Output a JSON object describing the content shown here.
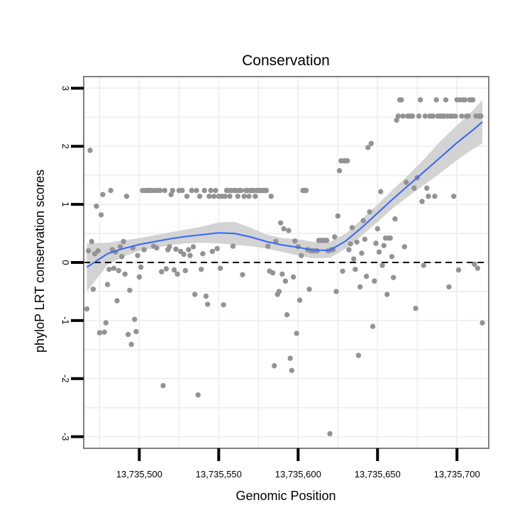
{
  "chart_data": {
    "type": "scatter",
    "title": "Conservation",
    "xlabel": "Genomic Position",
    "ylabel": "phyloP LRT conservation scores",
    "xlim": [
      13735465,
      13735720
    ],
    "ylim": [
      -3.2,
      3.2
    ],
    "x_ticks": [
      13735500,
      13735550,
      13735600,
      13735650,
      13735700
    ],
    "x_tick_labels": [
      "13,735,500",
      "13,735,550",
      "13,735,600",
      "13,735,650",
      "13,735,700"
    ],
    "y_ticks": [
      -3,
      -2,
      -1,
      0,
      1,
      2,
      3
    ],
    "y_tick_labels": [
      "-3",
      "-2",
      "-1",
      "0",
      "1",
      "2",
      "3"
    ],
    "reference_line_y": 0,
    "grid": true,
    "colors": {
      "points": "#939393",
      "smooth": "#3366ff",
      "band": "#d3d3d3",
      "reference": "#000000",
      "border": "#7f7f7f",
      "grid": "#f0f0f0"
    },
    "points": [
      [
        13735467,
        -0.8
      ],
      [
        13735468,
        0.2
      ],
      [
        13735469,
        1.93
      ],
      [
        13735470,
        0.36
      ],
      [
        13735471,
        -0.46
      ],
      [
        13735472,
        0.15
      ],
      [
        13735473,
        0.97
      ],
      [
        13735474,
        0.2
      ],
      [
        13735475,
        -1.21
      ],
      [
        13735476,
        0.82
      ],
      [
        13735477,
        1.17
      ],
      [
        13735478,
        -1.2
      ],
      [
        13735479,
        -1.04
      ],
      [
        13735480,
        -0.38
      ],
      [
        13735481,
        -0.12
      ],
      [
        13735482,
        1.24
      ],
      [
        13735483,
        0.22
      ],
      [
        13735484,
        -0.1
      ],
      [
        13735485,
        0.18
      ],
      [
        13735486,
        -0.66
      ],
      [
        13735487,
        -0.14
      ],
      [
        13735488,
        0.27
      ],
      [
        13735489,
        0.1
      ],
      [
        13735490,
        0.36
      ],
      [
        13735491,
        -0.2
      ],
      [
        13735492,
        1.14
      ],
      [
        13735493,
        -1.24
      ],
      [
        13735494,
        -0.48
      ],
      [
        13735495,
        -1.41
      ],
      [
        13735496,
        0.25
      ],
      [
        13735497,
        -0.98
      ],
      [
        13735498,
        -1.19
      ],
      [
        13735499,
        0.12
      ],
      [
        13735500,
        -0.25
      ],
      [
        13735501,
        -0.08
      ],
      [
        13735502,
        1.24
      ],
      [
        13735503,
        0.22
      ],
      [
        13735504,
        1.24
      ],
      [
        13735505,
        1.24
      ],
      [
        13735506,
        1.24
      ],
      [
        13735507,
        1.24
      ],
      [
        13735508,
        1.24
      ],
      [
        13735509,
        0.28
      ],
      [
        13735510,
        1.24
      ],
      [
        13735511,
        0.25
      ],
      [
        13735512,
        1.24
      ],
      [
        13735513,
        1.24
      ],
      [
        13735514,
        -0.16
      ],
      [
        13735515,
        -2.12
      ],
      [
        13735516,
        1.24
      ],
      [
        13735517,
        -0.11
      ],
      [
        13735518,
        0.22
      ],
      [
        13735519,
        0.27
      ],
      [
        13735520,
        1.17
      ],
      [
        13735521,
        1.24
      ],
      [
        13735522,
        -0.13
      ],
      [
        13735523,
        0.23
      ],
      [
        13735524,
        -0.2
      ],
      [
        13735525,
        1.24
      ],
      [
        13735526,
        0.19
      ],
      [
        13735527,
        1.24
      ],
      [
        13735528,
        0.14
      ],
      [
        13735529,
        -0.14
      ],
      [
        13735530,
        1.14
      ],
      [
        13735531,
        0.22
      ],
      [
        13735532,
        0.12
      ],
      [
        13735533,
        1.24
      ],
      [
        13735534,
        0.27
      ],
      [
        13735535,
        -0.55
      ],
      [
        13735536,
        1.24
      ],
      [
        13735537,
        -2.28
      ],
      [
        13735538,
        1.14
      ],
      [
        13735539,
        -0.12
      ],
      [
        13735540,
        0.15
      ],
      [
        13735541,
        1.24
      ],
      [
        13735542,
        -0.58
      ],
      [
        13735543,
        -0.72
      ],
      [
        13735544,
        1.14
      ],
      [
        13735545,
        1.24
      ],
      [
        13735546,
        0.19
      ],
      [
        13735547,
        1.14
      ],
      [
        13735548,
        1.24
      ],
      [
        13735549,
        0.24
      ],
      [
        13735550,
        1.14
      ],
      [
        13735551,
        -0.1
      ],
      [
        13735552,
        1.14
      ],
      [
        13735553,
        -0.73
      ],
      [
        13735554,
        1.14
      ],
      [
        13735555,
        1.24
      ],
      [
        13735556,
        1.24
      ],
      [
        13735557,
        1.14
      ],
      [
        13735558,
        1.24
      ],
      [
        13735559,
        0.28
      ],
      [
        13735560,
        1.24
      ],
      [
        13735561,
        1.24
      ],
      [
        13735562,
        1.14
      ],
      [
        13735563,
        1.24
      ],
      [
        13735564,
        1.24
      ],
      [
        13735565,
        -0.21
      ],
      [
        13735566,
        1.14
      ],
      [
        13735567,
        1.24
      ],
      [
        13735568,
        1.24
      ],
      [
        13735569,
        1.14
      ],
      [
        13735570,
        1.24
      ],
      [
        13735571,
        1.24
      ],
      [
        13735572,
        1.24
      ],
      [
        13735573,
        1.14
      ],
      [
        13735574,
        1.24
      ],
      [
        13735575,
        1.24
      ],
      [
        13735576,
        1.24
      ],
      [
        13735577,
        1.24
      ],
      [
        13735578,
        1.24
      ],
      [
        13735579,
        1.24
      ],
      [
        13735580,
        1.24
      ],
      [
        13735581,
        0.28
      ],
      [
        13735582,
        -0.15
      ],
      [
        13735583,
        1.14
      ],
      [
        13735584,
        -0.18
      ],
      [
        13735585,
        -1.78
      ],
      [
        13735586,
        0.36
      ],
      [
        13735587,
        -0.55
      ],
      [
        13735588,
        -0.5
      ],
      [
        13735589,
        0.68
      ],
      [
        13735590,
        -0.2
      ],
      [
        13735591,
        0.58
      ],
      [
        13735592,
        -0.32
      ],
      [
        13735593,
        -0.9
      ],
      [
        13735594,
        0.55
      ],
      [
        13735595,
        -1.65
      ],
      [
        13735596,
        -1.86
      ],
      [
        13735597,
        -0.25
      ],
      [
        13735598,
        0.37
      ],
      [
        13735599,
        -1.22
      ],
      [
        13735600,
        0.27
      ],
      [
        13735601,
        -0.65
      ],
      [
        13735602,
        0.12
      ],
      [
        13735603,
        1.24
      ],
      [
        13735604,
        1.24
      ],
      [
        13735605,
        1.24
      ],
      [
        13735606,
        0.22
      ],
      [
        13735607,
        -0.46
      ],
      [
        13735608,
        0.2
      ],
      [
        13735609,
        0.2
      ],
      [
        13735610,
        0.2
      ],
      [
        13735611,
        0.2
      ],
      [
        13735612,
        0.2
      ],
      [
        13735613,
        0.38
      ],
      [
        13735614,
        0.38
      ],
      [
        13735615,
        0.38
      ],
      [
        13735616,
        0.38
      ],
      [
        13735617,
        0.38
      ],
      [
        13735618,
        0.38
      ],
      [
        13735619,
        0.2
      ],
      [
        13735620,
        -2.95
      ],
      [
        13735621,
        0.22
      ],
      [
        13735622,
        0.22
      ],
      [
        13735623,
        0.44
      ],
      [
        13735624,
        -0.5
      ],
      [
        13735625,
        0.8
      ],
      [
        13735626,
        1.58
      ],
      [
        13735627,
        1.75
      ],
      [
        13735628,
        -0.15
      ],
      [
        13735629,
        1.75
      ],
      [
        13735630,
        1.75
      ],
      [
        13735631,
        1.75
      ],
      [
        13735632,
        0.22
      ],
      [
        13735633,
        0.32
      ],
      [
        13735634,
        0.6
      ],
      [
        13735635,
        0.06
      ],
      [
        13735636,
        -0.12
      ],
      [
        13735637,
        0.35
      ],
      [
        13735638,
        -1.6
      ],
      [
        13735639,
        -0.42
      ],
      [
        13735640,
        0.16
      ],
      [
        13735641,
        0.72
      ],
      [
        13735642,
        0.4
      ],
      [
        13735643,
        -0.24
      ],
      [
        13735644,
        1.98
      ],
      [
        13735645,
        0.87
      ],
      [
        13735646,
        2.05
      ],
      [
        13735647,
        -1.1
      ],
      [
        13735648,
        -0.32
      ],
      [
        13735649,
        0.33
      ],
      [
        13735650,
        0.58
      ],
      [
        13735651,
        0.18
      ],
      [
        13735652,
        1.22
      ],
      [
        13735653,
        -0.05
      ],
      [
        13735654,
        0.29
      ],
      [
        13735655,
        0.42
      ],
      [
        13735656,
        -0.55
      ],
      [
        13735657,
        0.42
      ],
      [
        13735658,
        0.42
      ],
      [
        13735659,
        0.1
      ],
      [
        13735660,
        -0.26
      ],
      [
        13735661,
        0.75
      ],
      [
        13735662,
        2.45
      ],
      [
        13735663,
        2.52
      ],
      [
        13735664,
        2.8
      ],
      [
        13735665,
        2.8
      ],
      [
        13735666,
        2.52
      ],
      [
        13735667,
        0.27
      ],
      [
        13735668,
        1.38
      ],
      [
        13735669,
        2.52
      ],
      [
        13735670,
        2.52
      ],
      [
        13735671,
        2.52
      ],
      [
        13735672,
        2.52
      ],
      [
        13735673,
        1.28
      ],
      [
        13735674,
        -0.79
      ],
      [
        13735675,
        1.46
      ],
      [
        13735676,
        2.52
      ],
      [
        13735677,
        2.8
      ],
      [
        13735678,
        1.05
      ],
      [
        13735679,
        -0.05
      ],
      [
        13735680,
        2.52
      ],
      [
        13735681,
        1.28
      ],
      [
        13735682,
        1.14
      ],
      [
        13735683,
        2.52
      ],
      [
        13735684,
        2.52
      ],
      [
        13735685,
        2.52
      ],
      [
        13735686,
        1.14
      ],
      [
        13735687,
        2.8
      ],
      [
        13735688,
        2.52
      ],
      [
        13735689,
        2.52
      ],
      [
        13735690,
        2.52
      ],
      [
        13735691,
        2.52
      ],
      [
        13735692,
        2.52
      ],
      [
        13735693,
        2.8
      ],
      [
        13735694,
        2.52
      ],
      [
        13735695,
        -0.42
      ],
      [
        13735696,
        2.52
      ],
      [
        13735697,
        2.52
      ],
      [
        13735698,
        1.14
      ],
      [
        13735699,
        2.52
      ],
      [
        13735700,
        2.8
      ],
      [
        13735701,
        -0.13
      ],
      [
        13735702,
        2.8
      ],
      [
        13735703,
        2.52
      ],
      [
        13735704,
        2.8
      ],
      [
        13735705,
        2.8
      ],
      [
        13735706,
        2.52
      ],
      [
        13735707,
        2.52
      ],
      [
        13735708,
        2.8
      ],
      [
        13735709,
        2.8
      ],
      [
        13735710,
        2.8
      ],
      [
        13735711,
        -0.03
      ],
      [
        13735712,
        2.52
      ],
      [
        13735713,
        -0.1
      ],
      [
        13735714,
        2.52
      ],
      [
        13735715,
        2.52
      ],
      [
        13735716,
        -1.04
      ]
    ],
    "smooth_fit": {
      "x": [
        13735467,
        13735480,
        13735490,
        13735500,
        13735510,
        13735520,
        13735530,
        13735540,
        13735550,
        13735560,
        13735570,
        13735580,
        13735590,
        13735600,
        13735610,
        13735620,
        13735630,
        13735640,
        13735650,
        13735660,
        13735670,
        13735680,
        13735690,
        13735700,
        13735710,
        13735716
      ],
      "y": [
        -0.08,
        0.15,
        0.24,
        0.31,
        0.36,
        0.41,
        0.45,
        0.48,
        0.51,
        0.5,
        0.44,
        0.36,
        0.3,
        0.26,
        0.21,
        0.21,
        0.37,
        0.6,
        0.85,
        1.1,
        1.34,
        1.58,
        1.82,
        2.06,
        2.28,
        2.42
      ],
      "lower": [
        -0.5,
        -0.04,
        0.1,
        0.2,
        0.25,
        0.3,
        0.33,
        0.34,
        0.33,
        0.3,
        0.28,
        0.24,
        0.18,
        0.12,
        0.07,
        0.08,
        0.24,
        0.46,
        0.7,
        0.94,
        1.15,
        1.35,
        1.55,
        1.76,
        1.95,
        2.05
      ],
      "upper": [
        0.33,
        0.34,
        0.38,
        0.42,
        0.47,
        0.52,
        0.57,
        0.62,
        0.69,
        0.7,
        0.6,
        0.48,
        0.42,
        0.4,
        0.35,
        0.35,
        0.5,
        0.74,
        1.0,
        1.26,
        1.52,
        1.8,
        2.1,
        2.36,
        2.62,
        2.8
      ]
    }
  }
}
